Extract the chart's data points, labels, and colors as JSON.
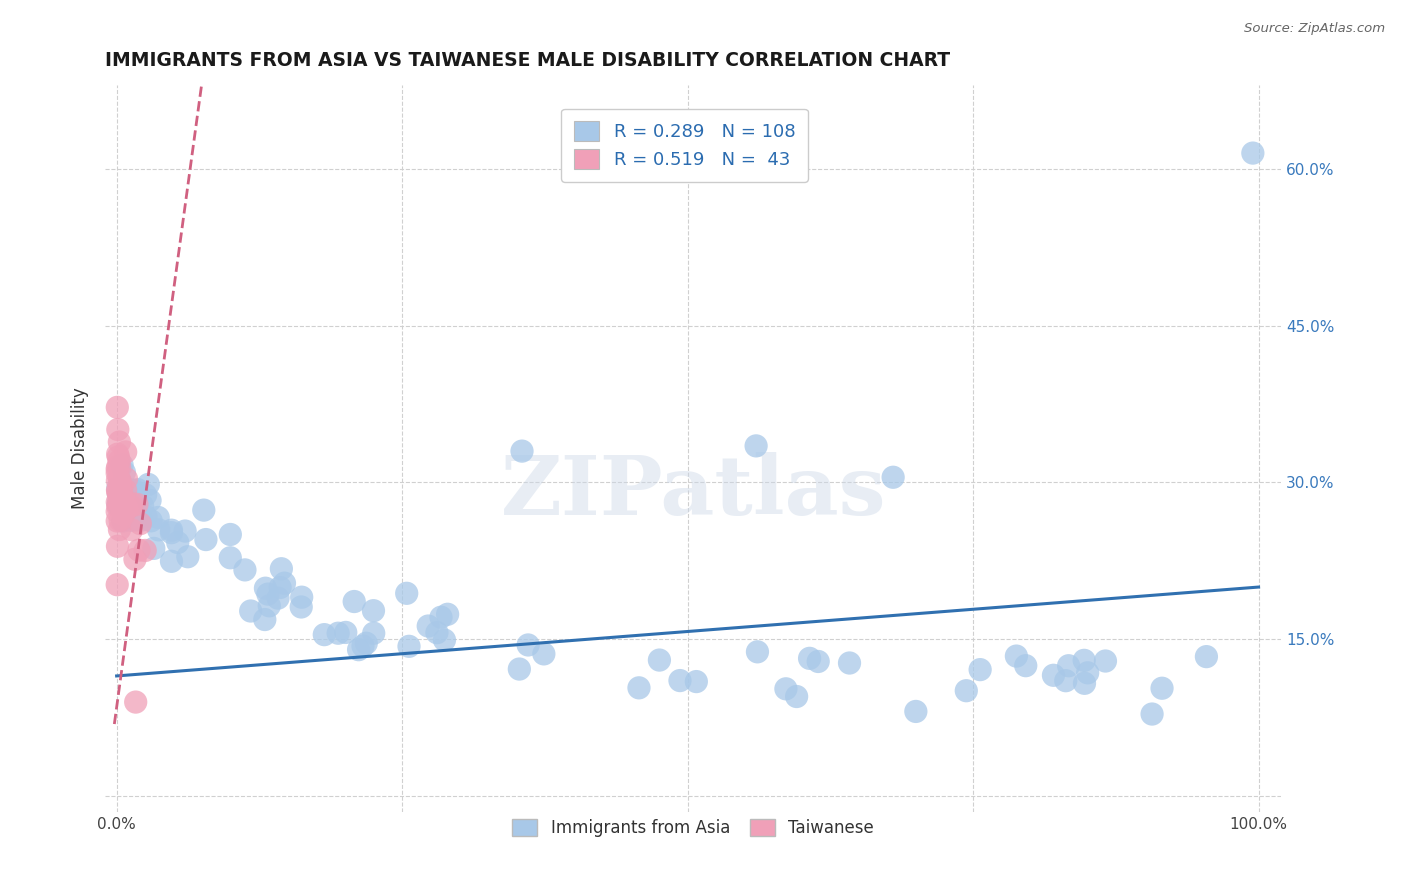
{
  "title": "IMMIGRANTS FROM ASIA VS TAIWANESE MALE DISABILITY CORRELATION CHART",
  "source": "Source: ZipAtlas.com",
  "ylabel": "Male Disability",
  "legend1_label": "Immigrants from Asia",
  "legend2_label": "Taiwanese",
  "r1": 0.289,
  "n1": 108,
  "r2": 0.519,
  "n2": 43,
  "color1": "#a8c8e8",
  "color2": "#f0a0b8",
  "trend1_color": "#3070b0",
  "trend2_color": "#d06080",
  "xlim": [
    -0.01,
    1.02
  ],
  "ylim": [
    -0.015,
    0.68
  ],
  "yticks": [
    0.0,
    0.15,
    0.3,
    0.45,
    0.6
  ],
  "watermark": "ZIPatlas",
  "background_color": "#ffffff",
  "grid_color": "#d0d0d0"
}
